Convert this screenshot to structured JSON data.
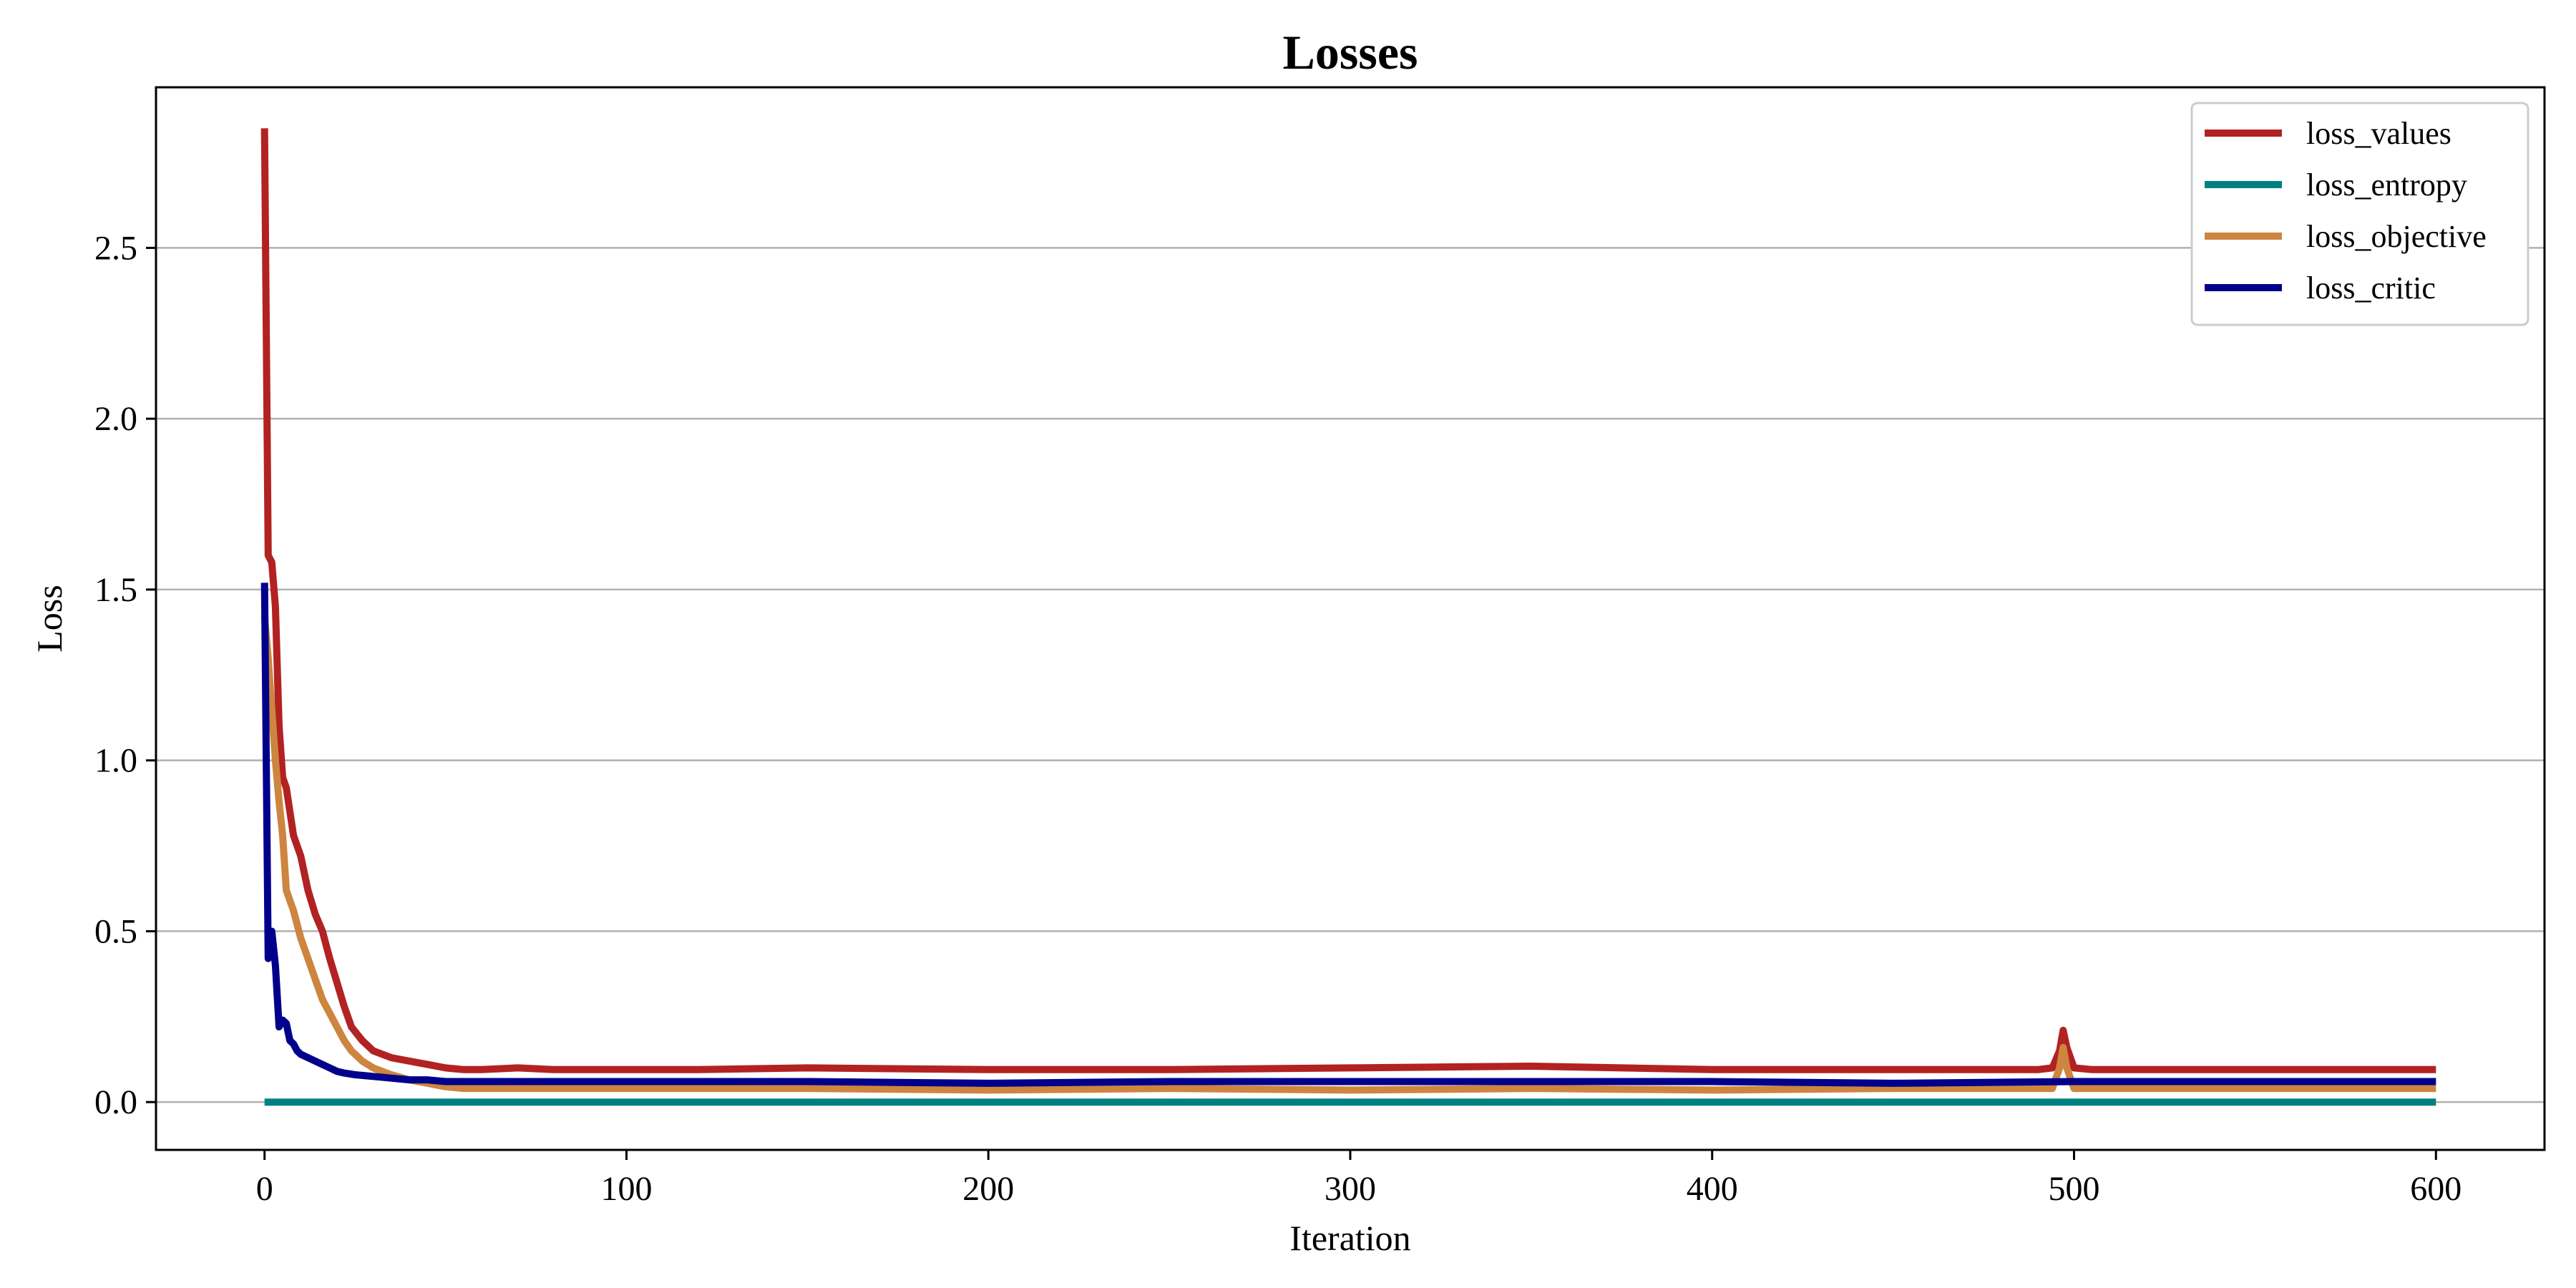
{
  "chart_data": {
    "type": "line",
    "title": "Losses",
    "xlabel": "Iteration",
    "ylabel": "Loss",
    "xlim": [
      -30,
      630
    ],
    "ylim": [
      -0.14,
      2.97
    ],
    "xticks": [
      0,
      100,
      200,
      300,
      400,
      500,
      600
    ],
    "xtick_labels": [
      "0",
      "100",
      "200",
      "300",
      "400",
      "500",
      "600"
    ],
    "yticks": [
      0.0,
      0.5,
      1.0,
      1.5,
      2.0,
      2.5
    ],
    "ytick_labels": [
      "0.0",
      "0.5",
      "1.0",
      "1.5",
      "2.0",
      "2.5"
    ],
    "grid": "horizontal",
    "legend_position": "top-right",
    "series": [
      {
        "name": "loss_values",
        "color": "#b22222",
        "x": [
          0,
          1,
          2,
          3,
          4,
          5,
          6,
          8,
          10,
          12,
          14,
          16,
          18,
          20,
          22,
          24,
          27,
          30,
          35,
          40,
          45,
          50,
          55,
          60,
          70,
          80,
          100,
          120,
          150,
          200,
          250,
          300,
          350,
          400,
          450,
          490,
          494,
          496,
          497,
          498,
          500,
          505,
          550,
          600
        ],
        "values": [
          2.85,
          1.6,
          1.58,
          1.45,
          1.1,
          0.95,
          0.92,
          0.78,
          0.72,
          0.62,
          0.55,
          0.5,
          0.42,
          0.35,
          0.28,
          0.22,
          0.18,
          0.15,
          0.13,
          0.12,
          0.11,
          0.1,
          0.095,
          0.095,
          0.1,
          0.095,
          0.095,
          0.095,
          0.1,
          0.095,
          0.095,
          0.1,
          0.105,
          0.095,
          0.095,
          0.095,
          0.1,
          0.15,
          0.21,
          0.16,
          0.1,
          0.095,
          0.095,
          0.095
        ]
      },
      {
        "name": "loss_entropy",
        "color": "#008080",
        "x": [
          0,
          600
        ],
        "values": [
          0.0,
          0.0
        ]
      },
      {
        "name": "loss_objective",
        "color": "#cd853f",
        "x": [
          0,
          1,
          2,
          3,
          4,
          5,
          6,
          8,
          10,
          12,
          14,
          16,
          18,
          20,
          22,
          24,
          27,
          30,
          35,
          40,
          45,
          50,
          55,
          60,
          100,
          150,
          200,
          250,
          300,
          350,
          400,
          450,
          494,
          496,
          497,
          498,
          500,
          505,
          550,
          600
        ],
        "values": [
          1.42,
          1.3,
          1.15,
          1.0,
          0.88,
          0.78,
          0.62,
          0.56,
          0.48,
          0.42,
          0.36,
          0.3,
          0.26,
          0.22,
          0.18,
          0.15,
          0.12,
          0.1,
          0.08,
          0.065,
          0.055,
          0.045,
          0.04,
          0.04,
          0.04,
          0.04,
          0.035,
          0.04,
          0.035,
          0.04,
          0.035,
          0.04,
          0.04,
          0.1,
          0.16,
          0.1,
          0.04,
          0.04,
          0.04,
          0.04
        ]
      },
      {
        "name": "loss_critic",
        "color": "#00008b",
        "x": [
          0,
          1,
          2,
          3,
          4,
          5,
          6,
          7,
          8,
          9,
          10,
          12,
          14,
          16,
          18,
          20,
          22,
          25,
          30,
          35,
          40,
          45,
          50,
          60,
          80,
          100,
          150,
          200,
          250,
          300,
          350,
          400,
          450,
          500,
          550,
          600
        ],
        "values": [
          1.52,
          0.42,
          0.5,
          0.4,
          0.22,
          0.24,
          0.23,
          0.18,
          0.17,
          0.15,
          0.14,
          0.13,
          0.12,
          0.11,
          0.1,
          0.09,
          0.085,
          0.08,
          0.075,
          0.07,
          0.065,
          0.065,
          0.06,
          0.06,
          0.06,
          0.06,
          0.06,
          0.055,
          0.06,
          0.06,
          0.06,
          0.06,
          0.055,
          0.06,
          0.06,
          0.06
        ]
      }
    ]
  }
}
